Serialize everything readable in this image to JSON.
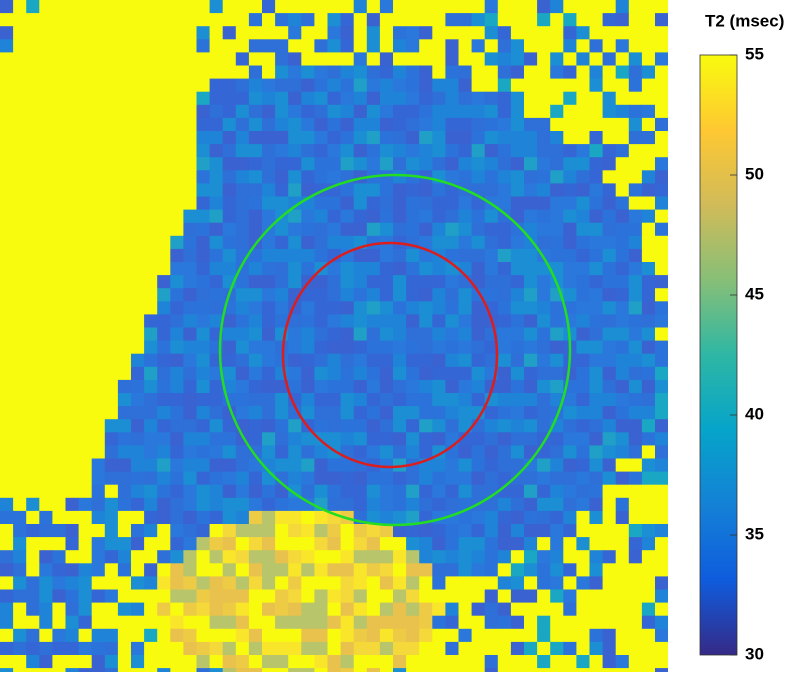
{
  "colorbar": {
    "title": "T2 (msec)",
    "lim": [
      30,
      55
    ],
    "ticks": [
      30,
      35,
      40,
      45,
      50,
      55
    ],
    "colormap": [
      "#352a87",
      "#0f5cdd",
      "#1481d6",
      "#06a4ca",
      "#2eb7a4",
      "#87bf77",
      "#d1bb59",
      "#fec832",
      "#f9fb0e"
    ]
  }
}
